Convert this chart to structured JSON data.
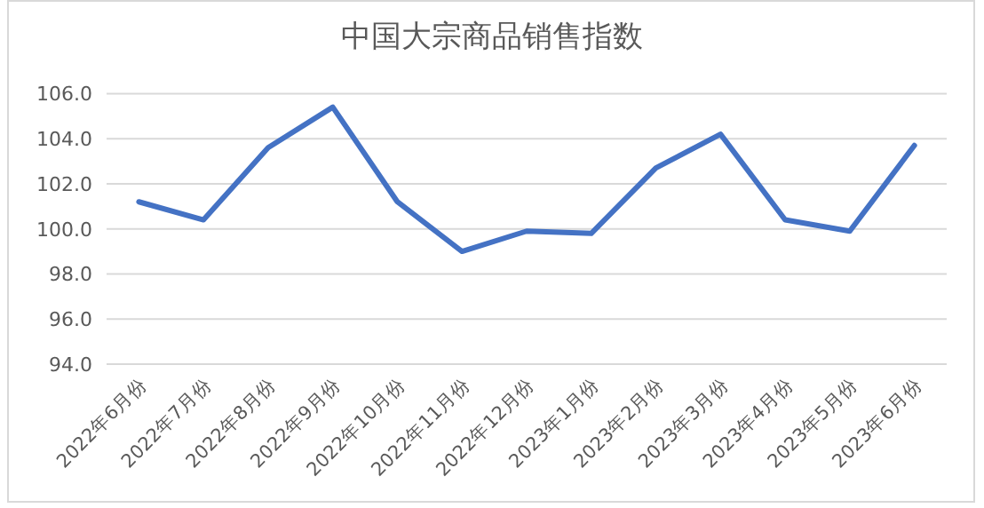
{
  "chart_data": {
    "type": "line",
    "title": "中国大宗商品销售指数",
    "categories": [
      "2022年6月份",
      "2022年7月份",
      "2022年8月份",
      "2022年9月份",
      "2022年10月份",
      "2022年11月份",
      "2022年12月份",
      "2023年1月份",
      "2023年2月份",
      "2023年3月份",
      "2023年4月份",
      "2023年5月份",
      "2023年6月份"
    ],
    "series": [
      {
        "color": "#4472c4",
        "values": [
          101.2,
          100.4,
          103.6,
          105.4,
          101.2,
          99.0,
          99.9,
          99.8,
          102.7,
          104.2,
          100.4,
          99.9,
          103.7
        ]
      }
    ],
    "ylim": [
      94,
      106
    ],
    "yticks": [
      {
        "value": 94,
        "label": "94.0"
      },
      {
        "value": 96,
        "label": "96.0"
      },
      {
        "value": 98,
        "label": "98.0"
      },
      {
        "value": 100,
        "label": "100.0"
      },
      {
        "value": 102,
        "label": "102.0"
      },
      {
        "value": 104,
        "label": "104.0"
      },
      {
        "value": 106,
        "label": "106.0"
      }
    ],
    "grid": "y",
    "marker": "none",
    "line_style": "solid"
  }
}
